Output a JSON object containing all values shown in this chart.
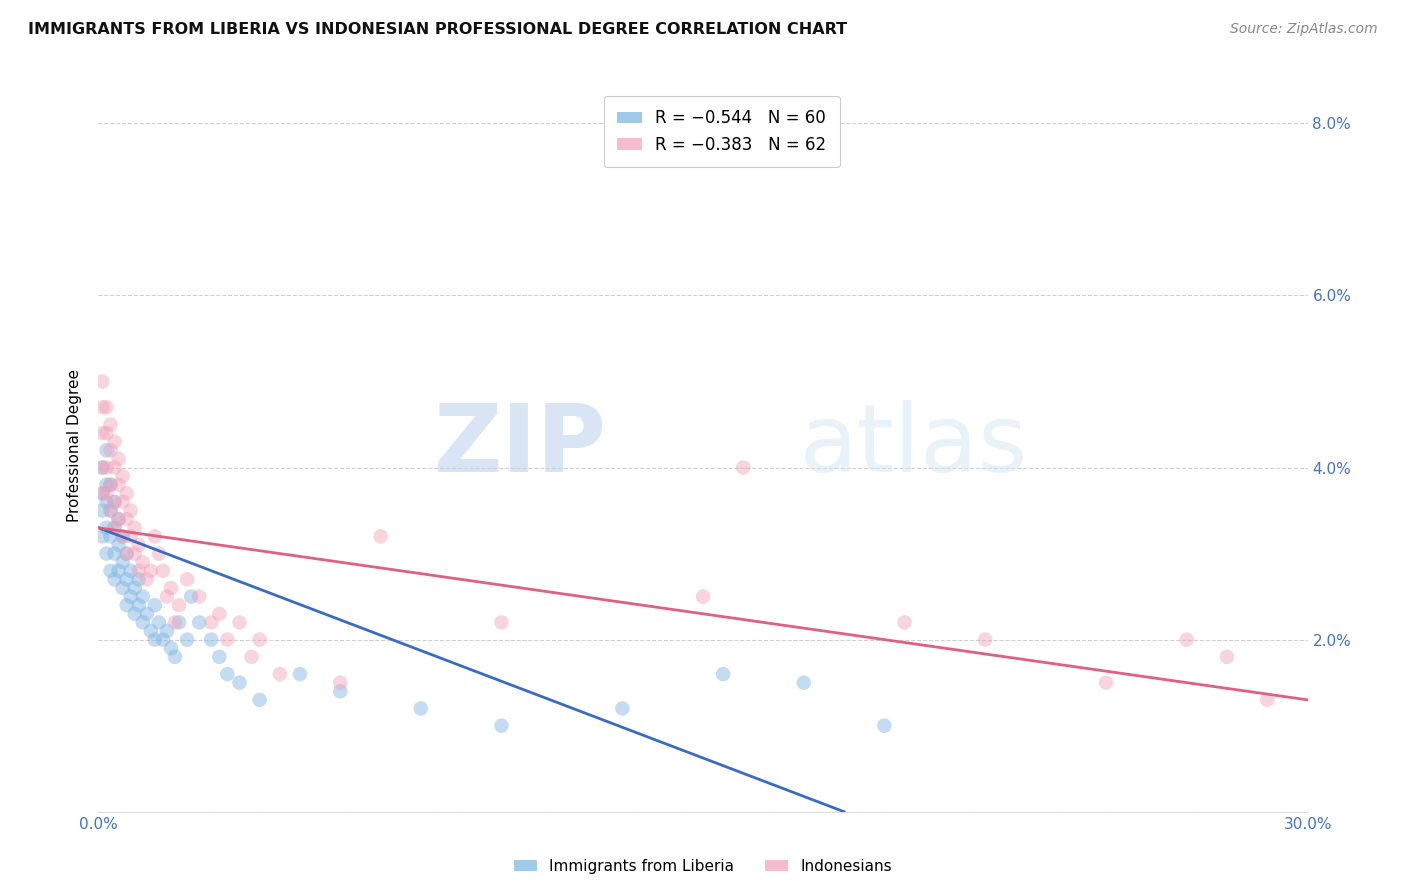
{
  "title": "IMMIGRANTS FROM LIBERIA VS INDONESIAN PROFESSIONAL DEGREE CORRELATION CHART",
  "source": "Source: ZipAtlas.com",
  "ylabel": "Professional Degree",
  "xlim": [
    0.0,
    0.3
  ],
  "ylim": [
    0.0,
    0.085
  ],
  "watermark_zip": "ZIP",
  "watermark_atlas": "atlas",
  "legend_entries": [
    {
      "label": "R = −0.544   N = 60",
      "color": "#a8c8f0"
    },
    {
      "label": "R = −0.383   N = 62",
      "color": "#f0a8c0"
    }
  ],
  "legend_labels": [
    "Immigrants from Liberia",
    "Indonesians"
  ],
  "blue_scatter_x": [
    0.001,
    0.001,
    0.001,
    0.001,
    0.002,
    0.002,
    0.002,
    0.002,
    0.002,
    0.003,
    0.003,
    0.003,
    0.003,
    0.004,
    0.004,
    0.004,
    0.004,
    0.005,
    0.005,
    0.005,
    0.006,
    0.006,
    0.006,
    0.007,
    0.007,
    0.007,
    0.008,
    0.008,
    0.009,
    0.009,
    0.01,
    0.01,
    0.011,
    0.011,
    0.012,
    0.013,
    0.014,
    0.014,
    0.015,
    0.016,
    0.017,
    0.018,
    0.019,
    0.02,
    0.022,
    0.023,
    0.025,
    0.028,
    0.03,
    0.032,
    0.035,
    0.04,
    0.05,
    0.06,
    0.08,
    0.1,
    0.13,
    0.155,
    0.175,
    0.195
  ],
  "blue_scatter_y": [
    0.04,
    0.037,
    0.035,
    0.032,
    0.042,
    0.038,
    0.036,
    0.033,
    0.03,
    0.038,
    0.035,
    0.032,
    0.028,
    0.036,
    0.033,
    0.03,
    0.027,
    0.034,
    0.031,
    0.028,
    0.032,
    0.029,
    0.026,
    0.03,
    0.027,
    0.024,
    0.028,
    0.025,
    0.026,
    0.023,
    0.027,
    0.024,
    0.025,
    0.022,
    0.023,
    0.021,
    0.024,
    0.02,
    0.022,
    0.02,
    0.021,
    0.019,
    0.018,
    0.022,
    0.02,
    0.025,
    0.022,
    0.02,
    0.018,
    0.016,
    0.015,
    0.013,
    0.016,
    0.014,
    0.012,
    0.01,
    0.012,
    0.016,
    0.015,
    0.01
  ],
  "pink_scatter_x": [
    0.001,
    0.001,
    0.001,
    0.001,
    0.001,
    0.002,
    0.002,
    0.002,
    0.002,
    0.003,
    0.003,
    0.003,
    0.003,
    0.004,
    0.004,
    0.004,
    0.004,
    0.005,
    0.005,
    0.005,
    0.006,
    0.006,
    0.006,
    0.007,
    0.007,
    0.007,
    0.008,
    0.008,
    0.009,
    0.009,
    0.01,
    0.01,
    0.011,
    0.012,
    0.013,
    0.014,
    0.015,
    0.016,
    0.017,
    0.018,
    0.019,
    0.02,
    0.022,
    0.025,
    0.028,
    0.03,
    0.032,
    0.035,
    0.038,
    0.04,
    0.045,
    0.06,
    0.07,
    0.1,
    0.15,
    0.16,
    0.2,
    0.22,
    0.25,
    0.27,
    0.28,
    0.29
  ],
  "pink_scatter_y": [
    0.05,
    0.047,
    0.044,
    0.04,
    0.037,
    0.047,
    0.044,
    0.04,
    0.037,
    0.045,
    0.042,
    0.038,
    0.035,
    0.043,
    0.04,
    0.036,
    0.033,
    0.041,
    0.038,
    0.034,
    0.039,
    0.036,
    0.032,
    0.037,
    0.034,
    0.03,
    0.035,
    0.032,
    0.033,
    0.03,
    0.031,
    0.028,
    0.029,
    0.027,
    0.028,
    0.032,
    0.03,
    0.028,
    0.025,
    0.026,
    0.022,
    0.024,
    0.027,
    0.025,
    0.022,
    0.023,
    0.02,
    0.022,
    0.018,
    0.02,
    0.016,
    0.015,
    0.032,
    0.022,
    0.025,
    0.04,
    0.022,
    0.02,
    0.015,
    0.02,
    0.018,
    0.013
  ],
  "blue_line_x": [
    0.0,
    0.185
  ],
  "blue_line_y": [
    0.033,
    0.0
  ],
  "pink_line_x": [
    0.0,
    0.3
  ],
  "pink_line_y": [
    0.033,
    0.013
  ],
  "scatter_size": 110,
  "scatter_alpha": 0.45,
  "blue_color": "#7ab3e0",
  "pink_color": "#f0a0b8",
  "blue_line_color": "#3a6bc4",
  "pink_line_color": "#e06080",
  "axis_label_color": "#4472c4",
  "grid_color": "#d0d0d0",
  "title_fontsize": 11.5
}
